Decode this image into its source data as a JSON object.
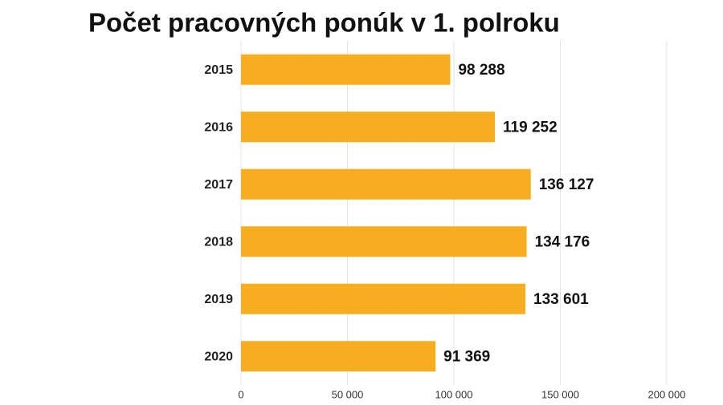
{
  "chart_data": {
    "type": "barh",
    "title": "Počet pracovných ponúk v 1. polroku",
    "categories": [
      "2015",
      "2016",
      "2017",
      "2018",
      "2019",
      "2020"
    ],
    "values": [
      98288,
      119252,
      136127,
      134176,
      133601,
      91369
    ],
    "value_labels": [
      "98 288",
      "119 252",
      "136 127",
      "134 176",
      "133 601",
      "91 369"
    ],
    "color": "#f6ae20",
    "xlim": [
      0,
      200000
    ],
    "xticks": [
      0,
      {
        "value": 50000,
        "label": "50 000"
      },
      {
        "value": 100000,
        "label": "100 000"
      },
      {
        "value": 150000,
        "label": "150 000"
      },
      {
        "value": 200000,
        "label": "200 000"
      }
    ],
    "grid": true
  }
}
